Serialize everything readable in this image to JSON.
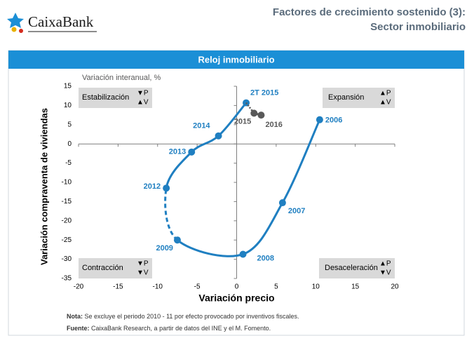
{
  "header": {
    "logo": "CaixaBank",
    "title_lines": [
      "Factores de crecimiento sostenido (3):",
      "Sector inmobiliario"
    ]
  },
  "banner": "Reloj  inmobiliario",
  "chart_data": {
    "type": "line",
    "subtitle": "Variación interanual, %",
    "x_label": "Variación precio",
    "y_label": "Variación compraventa de viviendas",
    "xlim": [
      -20,
      20
    ],
    "xticks": [
      -20,
      -15,
      -10,
      -5,
      0,
      5,
      10,
      15,
      20
    ],
    "ylim": [
      -35,
      15
    ],
    "yticks": [
      -35,
      -30,
      -25,
      -20,
      -15,
      -10,
      -5,
      0,
      5,
      10,
      15
    ],
    "series": [
      {
        "color": "#1f7fc1",
        "labels": [
          "2006",
          "2007",
          "2008",
          "2009",
          "2012",
          "2013",
          "2014",
          "2T 2015"
        ],
        "x": [
          10.5,
          5.8,
          0.8,
          -7.5,
          -8.9,
          -5.7,
          -2.3,
          1.2
        ],
        "values": [
          6.3,
          -15.3,
          -28.7,
          -25,
          -11.5,
          -2.1,
          2.1,
          10.7
        ],
        "dashed_segments": [
          3
        ]
      },
      {
        "color": "#595959",
        "labels": [
          "2015",
          "2016"
        ],
        "x": [
          2.2,
          3.1
        ],
        "values": [
          8.0,
          7.5
        ]
      }
    ],
    "quadrants": [
      {
        "label": "Estabilización",
        "signs": [
          "▼P",
          "▲V"
        ]
      },
      {
        "label": "Expansión",
        "signs": [
          "▲P",
          "▲V"
        ]
      },
      {
        "label": "Contracción",
        "signs": [
          "▼P",
          "▼V"
        ]
      },
      {
        "label": "Desaceleración",
        "signs": [
          "▲P",
          "▼V"
        ]
      }
    ]
  },
  "notes": [
    {
      "label": "Nota:",
      "text": "Se excluye el periodo 2010 - 11 por efecto provocado por inventivos fiscales."
    },
    {
      "label": "Fuente:",
      "text": "CaixaBank Research, a partir de datos del INE y el M. Fomento."
    }
  ]
}
